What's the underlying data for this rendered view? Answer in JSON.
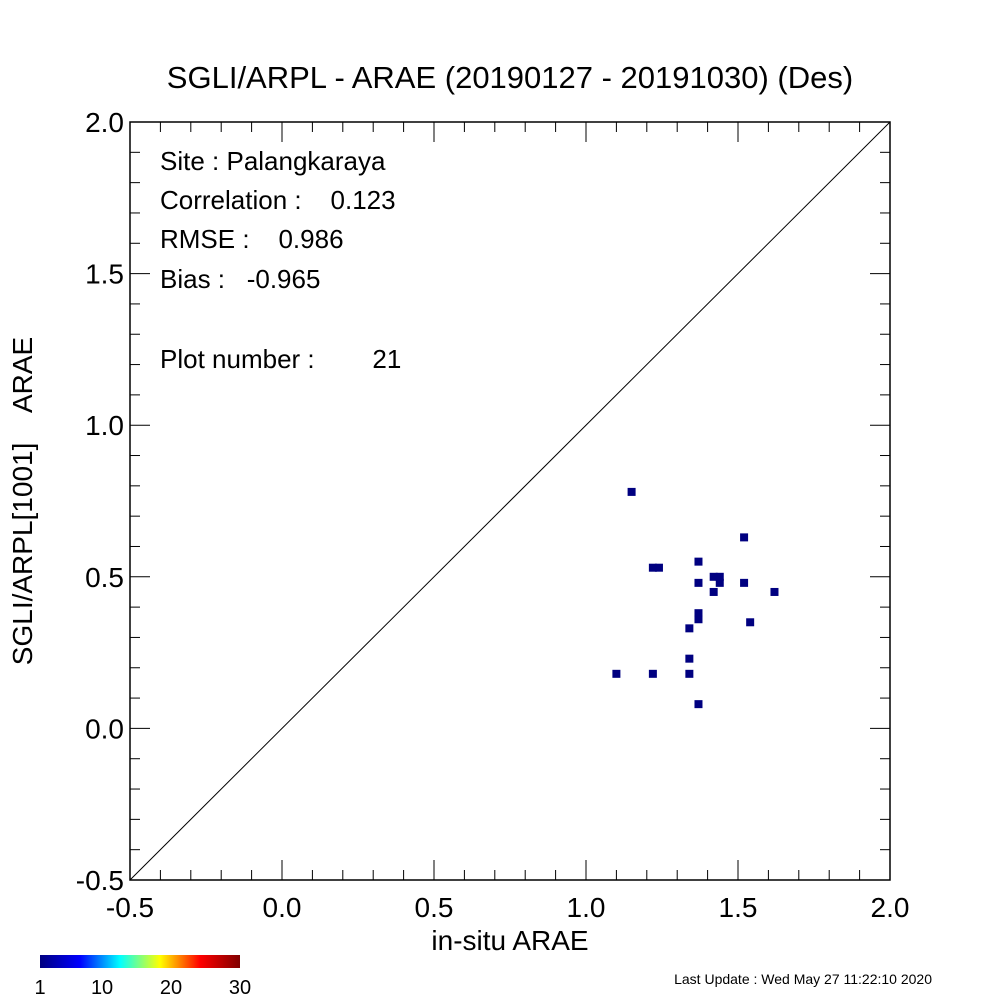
{
  "chart_data": {
    "type": "scatter",
    "title": "SGLI/ARPL - ARAE (20190127 - 20191030) (Des)",
    "xlabel": "in-situ ARAE",
    "ylabel": "SGLI/ARPL[1001]    ARAE",
    "xlim": [
      -0.5,
      2.0
    ],
    "ylim": [
      -0.5,
      2.0
    ],
    "x_ticks": [
      "-0.5",
      "0.0",
      "0.5",
      "1.0",
      "1.5",
      "2.0"
    ],
    "y_ticks": [
      "-0.5",
      "0.0",
      "0.5",
      "1.0",
      "1.5",
      "2.0"
    ],
    "one_to_one_line": true,
    "grid": false,
    "marker_color": "#000080",
    "annotations": {
      "site": "Site : Palangkaraya",
      "correlation": "Correlation :    0.123",
      "rmse": "RMSE :    0.986",
      "bias": "Bias :   -0.965",
      "plot_number": "Plot number :        21"
    },
    "points": [
      {
        "x": 1.15,
        "y": 0.78
      },
      {
        "x": 1.1,
        "y": 0.18
      },
      {
        "x": 1.22,
        "y": 0.18
      },
      {
        "x": 1.22,
        "y": 0.53
      },
      {
        "x": 1.24,
        "y": 0.53
      },
      {
        "x": 1.34,
        "y": 0.33
      },
      {
        "x": 1.34,
        "y": 0.23
      },
      {
        "x": 1.34,
        "y": 0.18
      },
      {
        "x": 1.37,
        "y": 0.08
      },
      {
        "x": 1.37,
        "y": 0.55
      },
      {
        "x": 1.37,
        "y": 0.48
      },
      {
        "x": 1.37,
        "y": 0.38
      },
      {
        "x": 1.37,
        "y": 0.36
      },
      {
        "x": 1.42,
        "y": 0.5
      },
      {
        "x": 1.42,
        "y": 0.45
      },
      {
        "x": 1.44,
        "y": 0.5
      },
      {
        "x": 1.44,
        "y": 0.48
      },
      {
        "x": 1.52,
        "y": 0.63
      },
      {
        "x": 1.52,
        "y": 0.48
      },
      {
        "x": 1.54,
        "y": 0.35
      },
      {
        "x": 1.62,
        "y": 0.45
      }
    ],
    "colorbar": {
      "labels": [
        "1",
        "10",
        "20",
        "30"
      ],
      "min": 1,
      "max": 30,
      "colors": [
        "#000080",
        "#0000ff",
        "#00ffff",
        "#ffff00",
        "#ff0000",
        "#800000"
      ]
    }
  },
  "footer": {
    "last_update": "Last Update : Wed May 27 11:22:10 2020"
  }
}
